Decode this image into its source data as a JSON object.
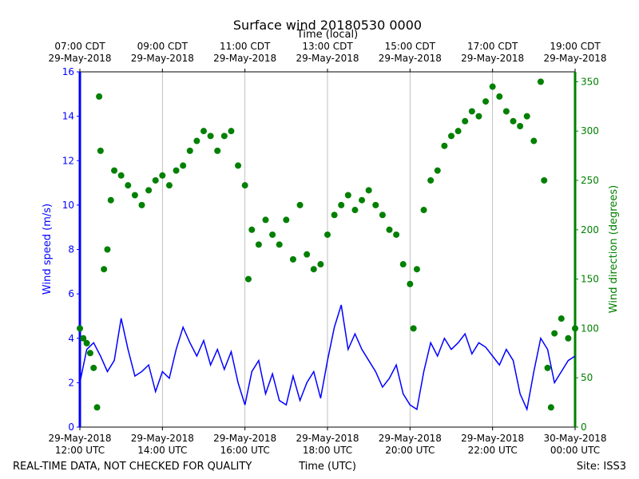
{
  "chart_data": {
    "type": "line_scatter",
    "title": "Surface wind 20180530 0000",
    "x2_label": "Time (local)",
    "x_label": "Time (UTC)",
    "y_label": "Wind speed (m/s)",
    "y2_label": "Wind direction (degrees)",
    "footer_left": "REAL-TIME DATA, NOT CHECKED FOR QUALITY",
    "footer_right": "Site: ISS3",
    "grid": true,
    "xlim": [
      "2018-05-29T12:00Z",
      "2018-05-30T00:00Z"
    ],
    "xticks": [
      {
        "value": "2018-05-29T12:00Z",
        "label": "29-May-2018\n12:00 UTC"
      },
      {
        "value": "2018-05-29T14:00Z",
        "label": "29-May-2018\n14:00 UTC"
      },
      {
        "value": "2018-05-29T16:00Z",
        "label": "29-May-2018\n16:00 UTC"
      },
      {
        "value": "2018-05-29T18:00Z",
        "label": "29-May-2018\n18:00 UTC"
      },
      {
        "value": "2018-05-29T20:00Z",
        "label": "29-May-2018\n20:00 UTC"
      },
      {
        "value": "2018-05-29T22:00Z",
        "label": "29-May-2018\n22:00 UTC"
      },
      {
        "value": "2018-05-30T00:00Z",
        "label": "30-May-2018\n00:00 UTC"
      }
    ],
    "x2ticks": [
      {
        "value": "2018-05-29T07:00-05:00",
        "label": "07:00 CDT\n29-May-2018"
      },
      {
        "value": "2018-05-29T09:00-05:00",
        "label": "09:00 CDT\n29-May-2018"
      },
      {
        "value": "2018-05-29T11:00-05:00",
        "label": "11:00 CDT\n29-May-2018"
      },
      {
        "value": "2018-05-29T13:00-05:00",
        "label": "13:00 CDT\n29-May-2018"
      },
      {
        "value": "2018-05-29T15:00-05:00",
        "label": "15:00 CDT\n29-May-2018"
      },
      {
        "value": "2018-05-29T17:00-05:00",
        "label": "17:00 CDT\n29-May-2018"
      },
      {
        "value": "2018-05-29T19:00-05:00",
        "label": "19:00 CDT\n29-May-2018"
      }
    ],
    "ylim": [
      0,
      16
    ],
    "yticks": [
      0,
      2,
      4,
      6,
      8,
      10,
      12,
      14,
      16
    ],
    "y2lim": [
      0,
      360
    ],
    "y2ticks": [
      0,
      50,
      100,
      150,
      200,
      250,
      300,
      350
    ],
    "series": [
      {
        "name": "Wind speed",
        "color": "#0000ff",
        "kind": "line",
        "x": [
          "2018-05-29T12:00Z",
          "2018-05-29T12:10Z",
          "2018-05-29T12:20Z",
          "2018-05-29T12:30Z",
          "2018-05-29T12:40Z",
          "2018-05-29T12:50Z",
          "2018-05-29T13:00Z",
          "2018-05-29T13:10Z",
          "2018-05-29T13:20Z",
          "2018-05-29T13:30Z",
          "2018-05-29T13:40Z",
          "2018-05-29T13:50Z",
          "2018-05-29T14:00Z",
          "2018-05-29T14:10Z",
          "2018-05-29T14:20Z",
          "2018-05-29T14:30Z",
          "2018-05-29T14:40Z",
          "2018-05-29T14:50Z",
          "2018-05-29T15:00Z",
          "2018-05-29T15:10Z",
          "2018-05-29T15:20Z",
          "2018-05-29T15:30Z",
          "2018-05-29T15:40Z",
          "2018-05-29T15:50Z",
          "2018-05-29T16:00Z",
          "2018-05-29T16:10Z",
          "2018-05-29T16:20Z",
          "2018-05-29T16:30Z",
          "2018-05-29T16:40Z",
          "2018-05-29T16:50Z",
          "2018-05-29T17:00Z",
          "2018-05-29T17:10Z",
          "2018-05-29T17:20Z",
          "2018-05-29T17:30Z",
          "2018-05-29T17:40Z",
          "2018-05-29T17:50Z",
          "2018-05-29T18:00Z",
          "2018-05-29T18:10Z",
          "2018-05-29T18:20Z",
          "2018-05-29T18:30Z",
          "2018-05-29T18:40Z",
          "2018-05-29T18:50Z",
          "2018-05-29T19:00Z",
          "2018-05-29T19:10Z",
          "2018-05-29T19:20Z",
          "2018-05-29T19:30Z",
          "2018-05-29T19:40Z",
          "2018-05-29T19:50Z",
          "2018-05-29T20:00Z",
          "2018-05-29T20:10Z",
          "2018-05-29T20:20Z",
          "2018-05-29T20:30Z",
          "2018-05-29T20:40Z",
          "2018-05-29T20:50Z",
          "2018-05-29T21:00Z",
          "2018-05-29T21:10Z",
          "2018-05-29T21:20Z",
          "2018-05-29T21:30Z",
          "2018-05-29T21:40Z",
          "2018-05-29T21:50Z",
          "2018-05-29T22:00Z",
          "2018-05-29T22:10Z",
          "2018-05-29T22:20Z",
          "2018-05-29T22:30Z",
          "2018-05-29T22:40Z",
          "2018-05-29T22:50Z",
          "2018-05-29T23:00Z",
          "2018-05-29T23:10Z",
          "2018-05-29T23:20Z",
          "2018-05-29T23:30Z",
          "2018-05-29T23:40Z",
          "2018-05-29T23:50Z",
          "2018-05-30T00:00Z"
        ],
        "values": [
          2.0,
          3.5,
          3.8,
          3.2,
          2.5,
          3.0,
          4.9,
          3.5,
          2.3,
          2.5,
          2.8,
          1.6,
          2.5,
          2.2,
          3.5,
          4.5,
          3.8,
          3.2,
          3.9,
          2.8,
          3.5,
          2.6,
          3.4,
          2.0,
          1.0,
          2.5,
          3.0,
          1.5,
          2.4,
          1.2,
          1.0,
          2.3,
          1.2,
          2.0,
          2.5,
          1.3,
          3.0,
          4.5,
          5.5,
          3.5,
          4.2,
          3.5,
          3.0,
          2.5,
          1.8,
          2.2,
          2.8,
          1.5,
          1.0,
          0.8,
          2.5,
          3.8,
          3.2,
          4.0,
          3.5,
          3.8,
          4.2,
          3.3,
          3.8,
          3.6,
          3.2,
          2.8,
          3.5,
          3.0,
          1.5,
          0.8,
          2.5,
          4.0,
          3.5,
          2.0,
          2.5,
          3.0,
          3.2
        ]
      },
      {
        "name": "Wind direction",
        "color": "#008000",
        "kind": "scatter",
        "axis": "y2",
        "x": [
          "2018-05-29T12:00Z",
          "2018-05-29T12:05Z",
          "2018-05-29T12:10Z",
          "2018-05-29T12:15Z",
          "2018-05-29T12:20Z",
          "2018-05-29T12:25Z",
          "2018-05-29T12:28Z",
          "2018-05-29T12:30Z",
          "2018-05-29T12:35Z",
          "2018-05-29T12:40Z",
          "2018-05-29T12:45Z",
          "2018-05-29T12:50Z",
          "2018-05-29T13:00Z",
          "2018-05-29T13:10Z",
          "2018-05-29T13:20Z",
          "2018-05-29T13:30Z",
          "2018-05-29T13:40Z",
          "2018-05-29T13:50Z",
          "2018-05-29T14:00Z",
          "2018-05-29T14:10Z",
          "2018-05-29T14:20Z",
          "2018-05-29T14:30Z",
          "2018-05-29T14:40Z",
          "2018-05-29T14:50Z",
          "2018-05-29T15:00Z",
          "2018-05-29T15:10Z",
          "2018-05-29T15:20Z",
          "2018-05-29T15:30Z",
          "2018-05-29T15:40Z",
          "2018-05-29T15:50Z",
          "2018-05-29T16:00Z",
          "2018-05-29T16:05Z",
          "2018-05-29T16:10Z",
          "2018-05-29T16:20Z",
          "2018-05-29T16:30Z",
          "2018-05-29T16:40Z",
          "2018-05-29T16:50Z",
          "2018-05-29T17:00Z",
          "2018-05-29T17:10Z",
          "2018-05-29T17:20Z",
          "2018-05-29T17:30Z",
          "2018-05-29T17:40Z",
          "2018-05-29T17:50Z",
          "2018-05-29T18:00Z",
          "2018-05-29T18:10Z",
          "2018-05-29T18:20Z",
          "2018-05-29T18:30Z",
          "2018-05-29T18:40Z",
          "2018-05-29T18:50Z",
          "2018-05-29T19:00Z",
          "2018-05-29T19:10Z",
          "2018-05-29T19:20Z",
          "2018-05-29T19:30Z",
          "2018-05-29T19:40Z",
          "2018-05-29T19:50Z",
          "2018-05-29T20:00Z",
          "2018-05-29T20:05Z",
          "2018-05-29T20:10Z",
          "2018-05-29T20:20Z",
          "2018-05-29T20:30Z",
          "2018-05-29T20:40Z",
          "2018-05-29T20:50Z",
          "2018-05-29T21:00Z",
          "2018-05-29T21:10Z",
          "2018-05-29T21:20Z",
          "2018-05-29T21:30Z",
          "2018-05-29T21:40Z",
          "2018-05-29T21:50Z",
          "2018-05-29T22:00Z",
          "2018-05-29T22:10Z",
          "2018-05-29T22:20Z",
          "2018-05-29T22:30Z",
          "2018-05-29T22:40Z",
          "2018-05-29T22:50Z",
          "2018-05-29T23:00Z",
          "2018-05-29T23:10Z",
          "2018-05-29T23:15Z",
          "2018-05-29T23:20Z",
          "2018-05-29T23:25Z",
          "2018-05-29T23:30Z",
          "2018-05-29T23:40Z",
          "2018-05-29T23:50Z",
          "2018-05-30T00:00Z"
        ],
        "values": [
          100,
          90,
          85,
          75,
          60,
          20,
          335,
          280,
          160,
          180,
          230,
          260,
          255,
          245,
          235,
          225,
          240,
          250,
          255,
          245,
          260,
          265,
          280,
          290,
          300,
          295,
          280,
          295,
          300,
          265,
          245,
          150,
          200,
          185,
          210,
          195,
          185,
          210,
          170,
          225,
          175,
          160,
          165,
          195,
          215,
          225,
          235,
          220,
          230,
          240,
          225,
          215,
          200,
          195,
          165,
          145,
          100,
          160,
          220,
          250,
          260,
          285,
          295,
          300,
          310,
          320,
          315,
          330,
          345,
          335,
          320,
          310,
          305,
          315,
          290,
          350,
          250,
          60,
          20,
          95,
          110,
          90,
          100
        ]
      }
    ]
  }
}
